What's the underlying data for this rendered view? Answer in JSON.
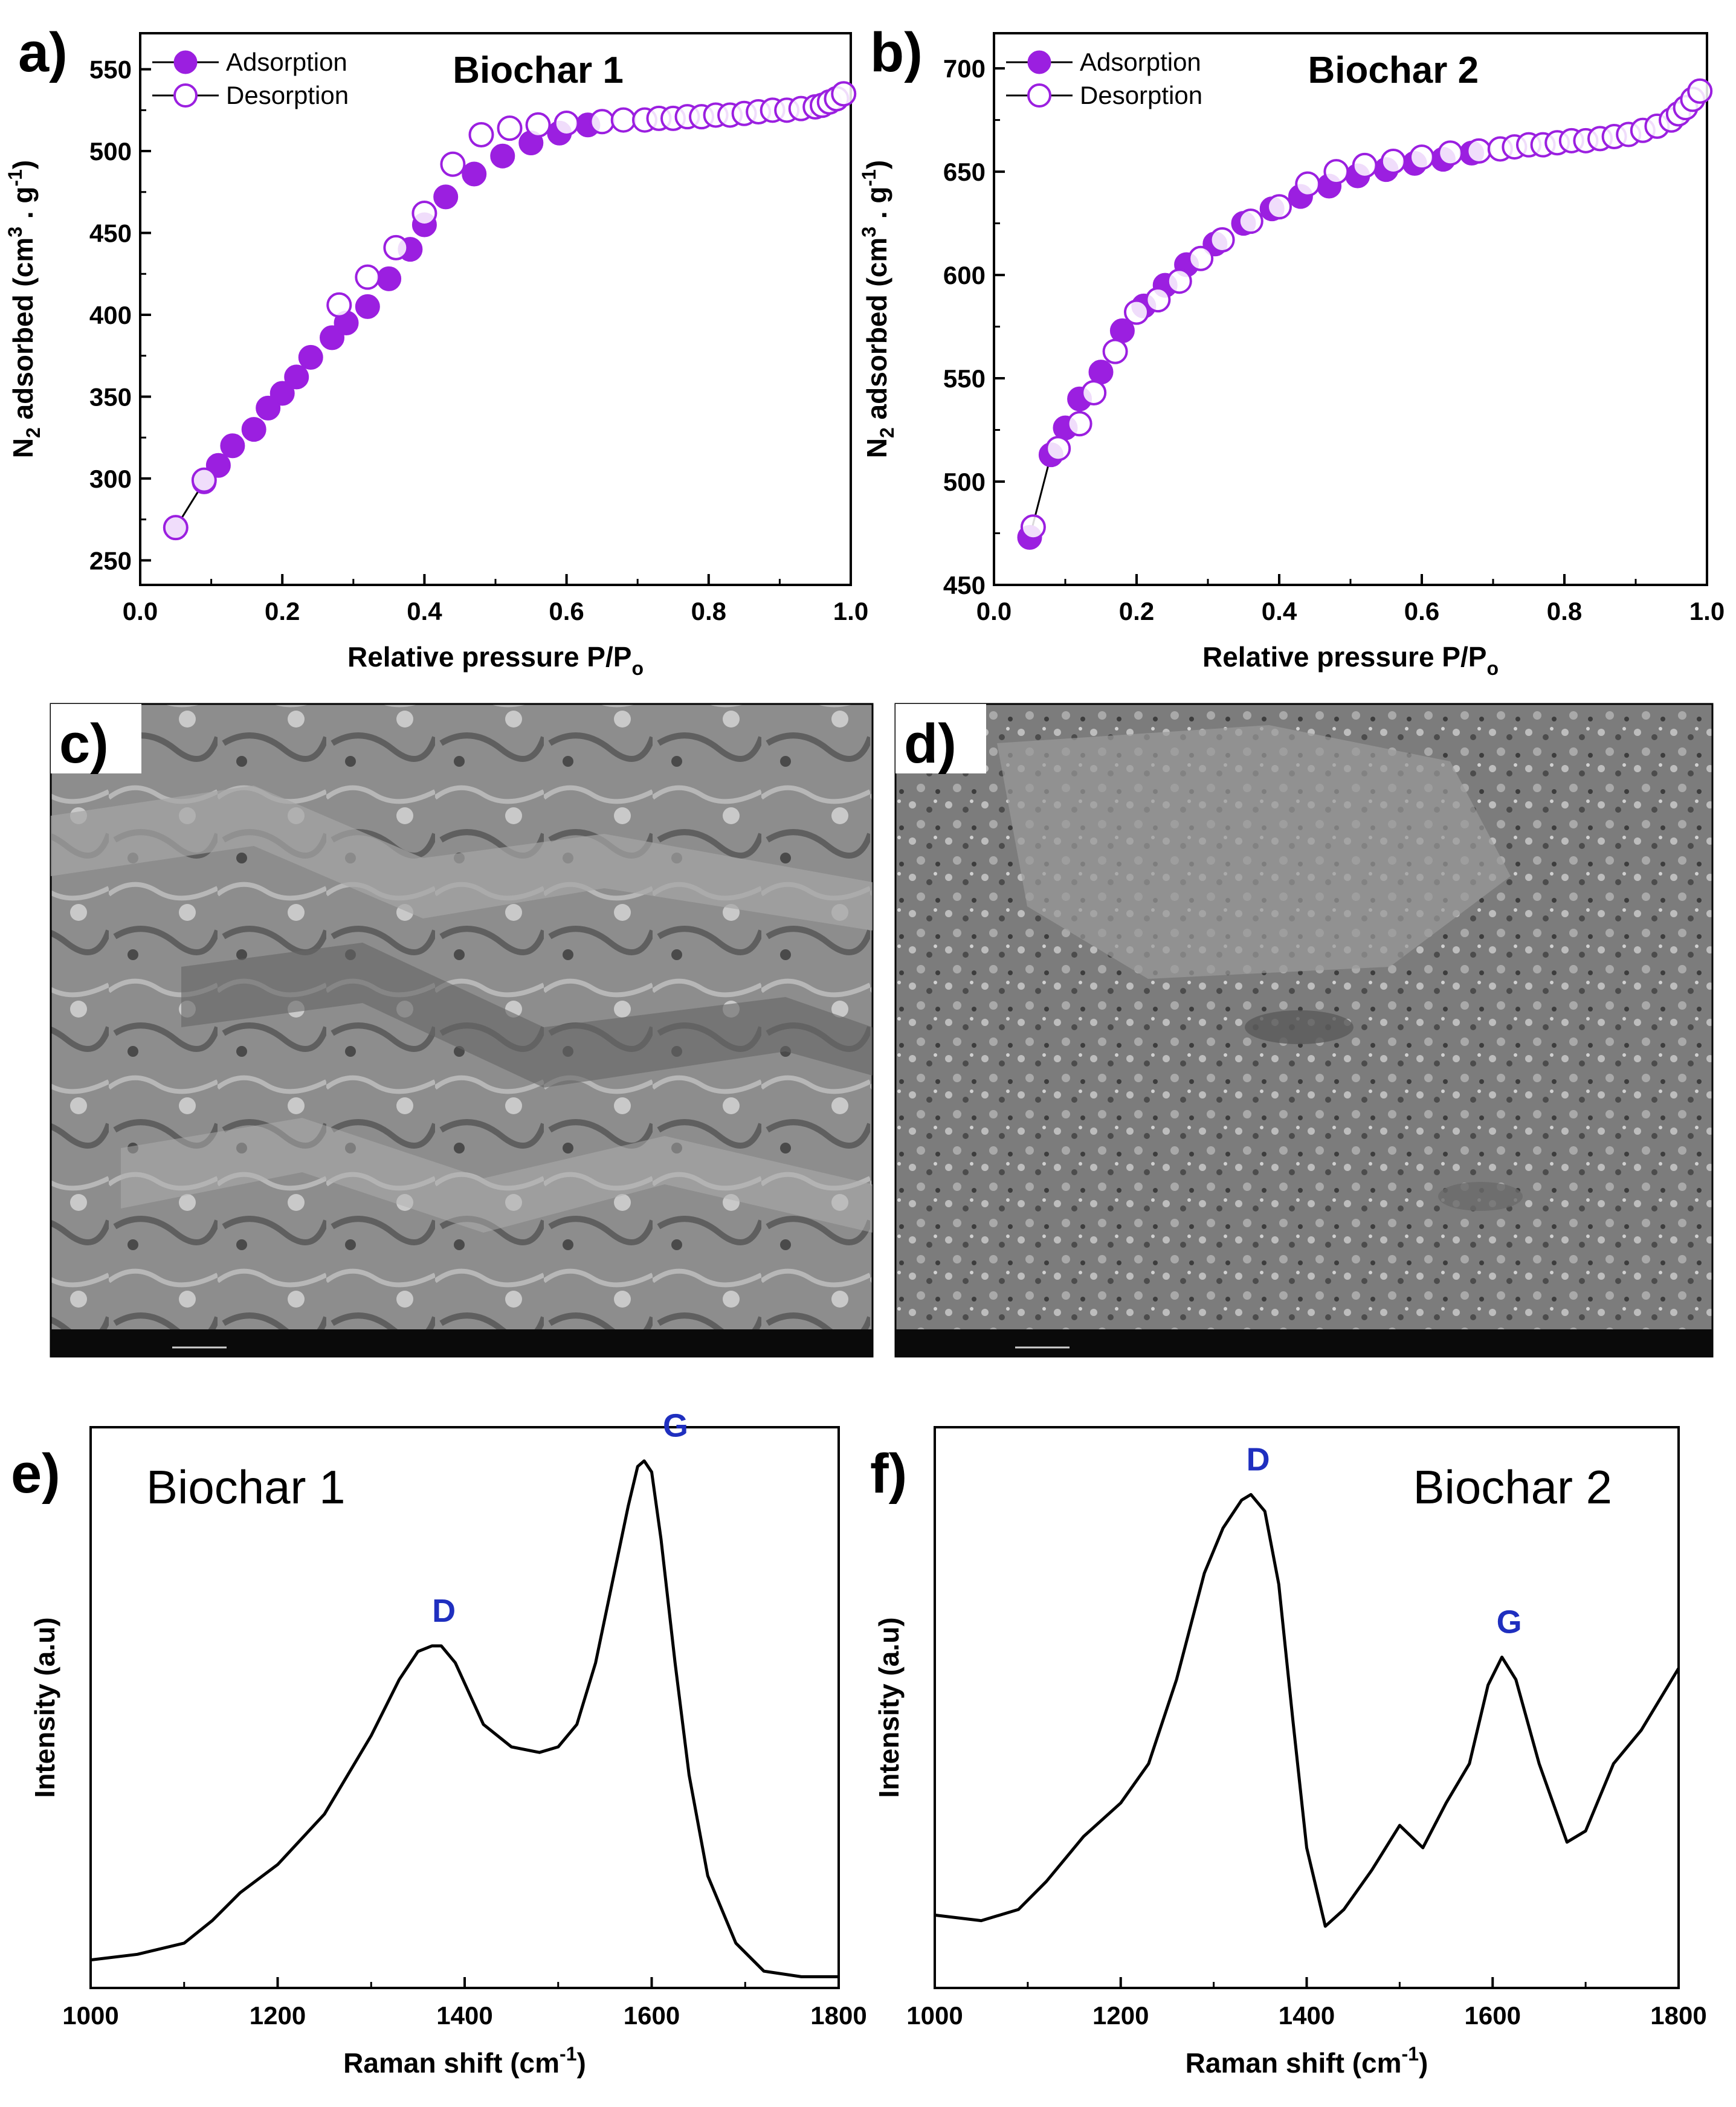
{
  "colors": {
    "accent": "#9b1fe0",
    "raman_line": "#000000",
    "peak_label": "#1f2fbf",
    "frame": "#000000"
  },
  "panels": {
    "a": {
      "letter": "a)"
    },
    "b": {
      "letter": "b)"
    },
    "c": {
      "letter": "c)"
    },
    "d": {
      "letter": "d)"
    },
    "e": {
      "letter": "e)"
    },
    "f": {
      "letter": "f)"
    }
  },
  "chart_data": [
    {
      "id": "a",
      "type": "scatter",
      "title": "Biochar 1",
      "xlabel": "Relative pressure P/P",
      "xlabel_sub": "o",
      "ylabel": "N",
      "ylabel_sub": "2",
      "ylabel_rest": " adsorbed (cm",
      "ylabel_sup": "3",
      "ylabel_end": " . g",
      "ylabel_sup2": "-1",
      "ylabel_close": ")",
      "xlim": [
        0.0,
        1.0
      ],
      "ylim": [
        235,
        572
      ],
      "xticks": [
        "0.0",
        "0.2",
        "0.4",
        "0.6",
        "0.8",
        "1.0"
      ],
      "yticks": [
        "250",
        "300",
        "350",
        "400",
        "450",
        "500",
        "550"
      ],
      "legend": {
        "position": "top-left",
        "entries": [
          "Adsorption",
          "Desorption"
        ]
      },
      "series": [
        {
          "name": "Adsorption",
          "marker": "filled",
          "x": [
            0.05,
            0.09,
            0.11,
            0.13,
            0.16,
            0.18,
            0.2,
            0.22,
            0.24,
            0.27,
            0.29,
            0.32,
            0.35,
            0.38,
            0.4,
            0.43,
            0.47,
            0.51,
            0.55,
            0.59,
            0.63
          ],
          "y": [
            270,
            298,
            308,
            320,
            330,
            343,
            352,
            362,
            374,
            386,
            395,
            405,
            422,
            440,
            455,
            472,
            486,
            497,
            505,
            511,
            516
          ]
        },
        {
          "name": "Desorption",
          "marker": "open",
          "x": [
            0.05,
            0.09,
            0.28,
            0.32,
            0.36,
            0.4,
            0.44,
            0.48,
            0.52,
            0.56,
            0.6,
            0.65,
            0.68,
            0.71,
            0.73,
            0.75,
            0.77,
            0.79,
            0.81,
            0.83,
            0.85,
            0.87,
            0.89,
            0.91,
            0.93,
            0.95,
            0.96,
            0.97,
            0.98,
            0.99
          ],
          "y": [
            270,
            299,
            406,
            423,
            441,
            462,
            492,
            510,
            514,
            516,
            517,
            518,
            519,
            519,
            520,
            520,
            521,
            521,
            522,
            522,
            523,
            524,
            525,
            525,
            526,
            527,
            528,
            530,
            532,
            535
          ]
        }
      ]
    },
    {
      "id": "b",
      "type": "scatter",
      "title": "Biochar 2",
      "xlabel": "Relative pressure P/P",
      "xlabel_sub": "o",
      "ylabel": "N",
      "ylabel_sub": "2",
      "ylabel_rest": " adsorbed (cm",
      "ylabel_sup": "3",
      "ylabel_end": " . g",
      "ylabel_sup2": "-1",
      "ylabel_close": ")",
      "xlim": [
        0.0,
        1.0
      ],
      "ylim": [
        450,
        717
      ],
      "xticks": [
        "0.0",
        "0.2",
        "0.4",
        "0.6",
        "0.8",
        "1.0"
      ],
      "yticks": [
        "450",
        "500",
        "550",
        "600",
        "650",
        "700"
      ],
      "legend": {
        "position": "top-left",
        "entries": [
          "Adsorption",
          "Desorption"
        ]
      },
      "series": [
        {
          "name": "Adsorption",
          "marker": "filled",
          "x": [
            0.05,
            0.08,
            0.1,
            0.12,
            0.15,
            0.18,
            0.21,
            0.24,
            0.27,
            0.31,
            0.35,
            0.39,
            0.43,
            0.47,
            0.51,
            0.55,
            0.59,
            0.63,
            0.67
          ],
          "y": [
            473,
            513,
            526,
            540,
            553,
            573,
            585,
            595,
            605,
            615,
            625,
            632,
            638,
            643,
            648,
            651,
            654,
            656,
            659
          ]
        },
        {
          "name": "Desorption",
          "marker": "open",
          "x": [
            0.055,
            0.09,
            0.12,
            0.14,
            0.17,
            0.2,
            0.23,
            0.26,
            0.29,
            0.32,
            0.36,
            0.4,
            0.44,
            0.48,
            0.52,
            0.56,
            0.6,
            0.64,
            0.68,
            0.71,
            0.73,
            0.75,
            0.77,
            0.79,
            0.81,
            0.83,
            0.85,
            0.87,
            0.89,
            0.91,
            0.93,
            0.95,
            0.96,
            0.97,
            0.98,
            0.99
          ],
          "y": [
            478,
            516,
            528,
            543,
            563,
            582,
            588,
            597,
            608,
            617,
            626,
            633,
            644,
            650,
            653,
            655,
            657,
            659,
            660,
            661,
            662,
            663,
            663,
            664,
            665,
            665,
            666,
            667,
            668,
            670,
            672,
            675,
            678,
            681,
            685,
            689
          ]
        }
      ]
    },
    {
      "id": "e",
      "type": "line",
      "title": "Biochar 1",
      "xlabel": "Raman shift (cm",
      "xlabel_sup": "-1",
      "xlabel_close": ")",
      "ylabel": "Intensity (a.u)",
      "xlim": [
        1000,
        1800
      ],
      "ylim": [
        0,
        1
      ],
      "xticks": [
        "1000",
        "1200",
        "1400",
        "1600",
        "1800"
      ],
      "peaks": [
        {
          "label": "D",
          "x": 1370
        },
        {
          "label": "G",
          "x": 1590
        }
      ],
      "series": [
        {
          "x": [
            1000,
            1050,
            1100,
            1130,
            1160,
            1200,
            1250,
            1300,
            1330,
            1350,
            1365,
            1375,
            1390,
            1420,
            1450,
            1480,
            1500,
            1520,
            1540,
            1560,
            1575,
            1585,
            1592,
            1600,
            1610,
            1625,
            1640,
            1660,
            1690,
            1720,
            1760,
            1800
          ],
          "y": [
            0.05,
            0.06,
            0.08,
            0.12,
            0.17,
            0.22,
            0.31,
            0.45,
            0.55,
            0.6,
            0.61,
            0.61,
            0.58,
            0.47,
            0.43,
            0.42,
            0.43,
            0.47,
            0.58,
            0.74,
            0.86,
            0.93,
            0.94,
            0.92,
            0.8,
            0.58,
            0.38,
            0.2,
            0.08,
            0.03,
            0.02,
            0.02
          ]
        }
      ]
    },
    {
      "id": "f",
      "type": "line",
      "title": "Biochar 2",
      "xlabel": "Raman shift (cm",
      "xlabel_sup": "-1",
      "xlabel_close": ")",
      "ylabel": "Intensity (a.u)",
      "xlim": [
        1000,
        1800
      ],
      "ylim": [
        0,
        1
      ],
      "xticks": [
        "1000",
        "1200",
        "1400",
        "1600",
        "1800"
      ],
      "peaks": [
        {
          "label": "D",
          "x": 1340
        },
        {
          "label": "G",
          "x": 1610
        }
      ],
      "series": [
        {
          "x": [
            1000,
            1050,
            1090,
            1120,
            1160,
            1200,
            1230,
            1260,
            1290,
            1310,
            1330,
            1340,
            1355,
            1370,
            1385,
            1400,
            1420,
            1440,
            1470,
            1500,
            1525,
            1550,
            1575,
            1595,
            1610,
            1625,
            1650,
            1680,
            1700,
            1730,
            1760,
            1800
          ],
          "y": [
            0.13,
            0.12,
            0.14,
            0.19,
            0.27,
            0.33,
            0.4,
            0.55,
            0.74,
            0.82,
            0.87,
            0.88,
            0.85,
            0.72,
            0.48,
            0.25,
            0.11,
            0.14,
            0.21,
            0.29,
            0.25,
            0.33,
            0.4,
            0.54,
            0.59,
            0.55,
            0.4,
            0.26,
            0.28,
            0.4,
            0.46,
            0.57
          ]
        }
      ]
    }
  ]
}
